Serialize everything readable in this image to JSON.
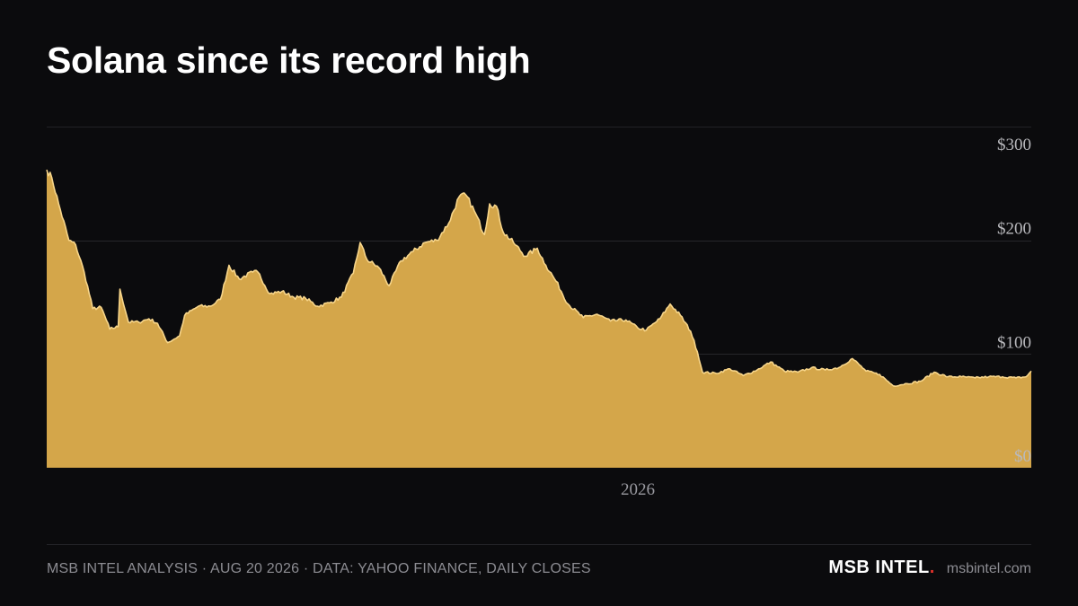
{
  "header": {
    "title": "Solana since its record high"
  },
  "footer": {
    "source": "MSB INTEL ANALYSIS · AUG 20 2026 · DATA: YAHOO FINANCE, DAILY CLOSES",
    "brand": "MSB INTEL",
    "brand_dot": ".",
    "site": "msbintel.com"
  },
  "colors": {
    "background": "#0b0b0d",
    "area_fill": "#d4a64a",
    "area_line": "#f7d58a",
    "grid": "#26262a",
    "brand_dot": "#e0312b"
  },
  "chart_data": {
    "type": "area",
    "title": "Solana since its record high",
    "xlabel": "",
    "ylabel": "",
    "ylim": [
      0,
      300
    ],
    "yticks": [
      0,
      100,
      200,
      300
    ],
    "ytick_labels": [
      "$0",
      "$100",
      "$200",
      "$300"
    ],
    "xlim": [
      "2025-01-19",
      "2026-08-20"
    ],
    "xticks": [
      "2026-01-01"
    ],
    "xtick_labels": [
      "2026"
    ],
    "grid": true,
    "series": [
      {
        "x": [
          "2025-01-19",
          "2025-01-22",
          "2025-01-26",
          "2025-02-01",
          "2025-02-05",
          "2025-02-10",
          "2025-02-15",
          "2025-02-20",
          "2025-02-25",
          "2025-03-02",
          "2025-03-03",
          "2025-03-08",
          "2025-03-14",
          "2025-03-20",
          "2025-03-25",
          "2025-03-31",
          "2025-04-07",
          "2025-04-10",
          "2025-04-18",
          "2025-04-25",
          "2025-05-01",
          "2025-05-06",
          "2025-05-12",
          "2025-05-20",
          "2025-05-23",
          "2025-05-30",
          "2025-06-06",
          "2025-06-13",
          "2025-06-20",
          "2025-06-27",
          "2025-07-04",
          "2025-07-11",
          "2025-07-18",
          "2025-07-22",
          "2025-07-26",
          "2025-08-02",
          "2025-08-08",
          "2025-08-15",
          "2025-08-22",
          "2025-08-29",
          "2025-09-05",
          "2025-09-12",
          "2025-09-18",
          "2025-09-22",
          "2025-09-27",
          "2025-10-03",
          "2025-10-06",
          "2025-10-10",
          "2025-10-14",
          "2025-10-20",
          "2025-10-27",
          "2025-11-03",
          "2025-11-08",
          "2025-11-14",
          "2025-11-21",
          "2025-11-30",
          "2025-12-08",
          "2025-12-16",
          "2025-12-25",
          "2026-01-01",
          "2026-01-06",
          "2026-01-14",
          "2026-01-20",
          "2026-01-26",
          "2026-02-01",
          "2026-02-05",
          "2026-02-08",
          "2026-02-16",
          "2026-02-24",
          "2026-03-04",
          "2026-03-12",
          "2026-03-20",
          "2026-03-28",
          "2026-04-05",
          "2026-04-13",
          "2026-04-21",
          "2026-04-29",
          "2026-05-07",
          "2026-05-15",
          "2026-05-23",
          "2026-05-31",
          "2026-06-08",
          "2026-06-16",
          "2026-06-24",
          "2026-07-02",
          "2026-07-10",
          "2026-07-18",
          "2026-07-26",
          "2026-08-03",
          "2026-08-11",
          "2026-08-17",
          "2026-08-20"
        ],
        "values": [
          262,
          255,
          232,
          200,
          196,
          172,
          140,
          141,
          122,
          124,
          157,
          128,
          128,
          131,
          127,
          110,
          116,
          134,
          142,
          142,
          148,
          178,
          166,
          172,
          172,
          153,
          155,
          150,
          149,
          142,
          145,
          150,
          171,
          198,
          183,
          176,
          160,
          182,
          190,
          198,
          200,
          215,
          238,
          240,
          226,
          205,
          232,
          230,
          207,
          198,
          186,
          193,
          178,
          164,
          144,
          132,
          135,
          129,
          130,
          123,
          121,
          131,
          144,
          134,
          120,
          102,
          84,
          83,
          87,
          81,
          86,
          93,
          85,
          84,
          88,
          86,
          88,
          96,
          85,
          82,
          72,
          74,
          76,
          84,
          80,
          80,
          79,
          80,
          80,
          79,
          80,
          85
        ]
      }
    ]
  }
}
